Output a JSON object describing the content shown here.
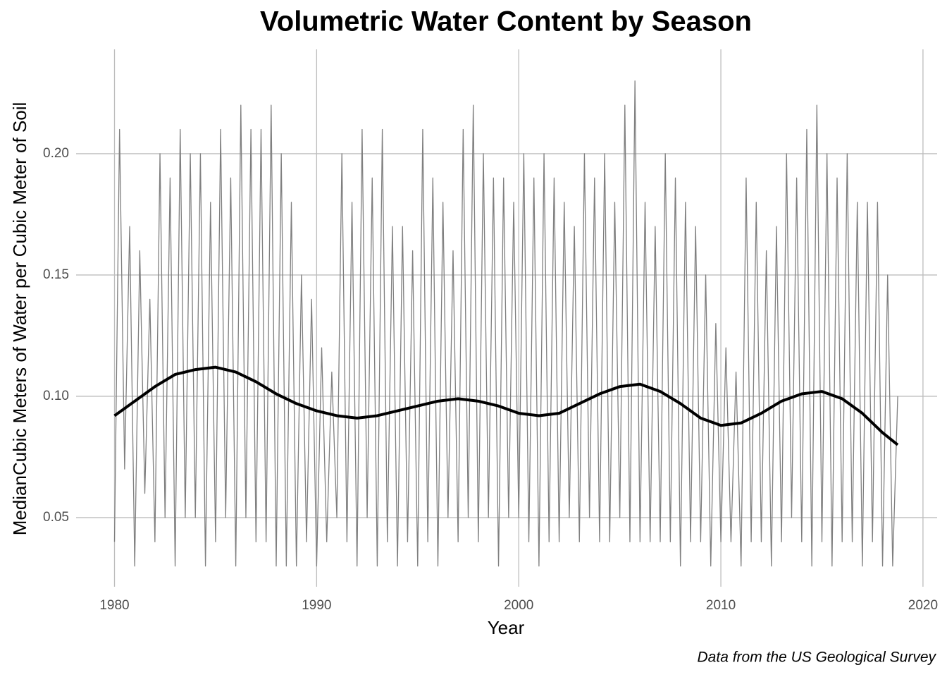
{
  "chart_data": {
    "type": "line",
    "title": "Volumetric Water Content by Season",
    "x_label": "Year",
    "y_label": "MedianCubic Meters of Water per Cubic Meter of Soil",
    "caption": "Data from the US Geological Survey",
    "xlim": [
      1978.1,
      2020.7
    ],
    "ylim": [
      0.0215,
      0.243
    ],
    "xticks": [
      1980,
      1990,
      2000,
      2010,
      2020
    ],
    "yticks": [
      {
        "value": 0.05,
        "label": "0.05"
      },
      {
        "value": 0.1,
        "label": "0.10"
      },
      {
        "value": 0.15,
        "label": "0.15"
      },
      {
        "value": 0.2,
        "label": "0.20"
      }
    ],
    "grid": true,
    "series": [
      {
        "color": "#7f7f7f",
        "width": 1.3,
        "x": [
          1980,
          1980.25,
          1980.5,
          1980.75,
          1981,
          1981.25,
          1981.5,
          1981.75,
          1982,
          1982.25,
          1982.5,
          1982.75,
          1983,
          1983.25,
          1983.5,
          1983.75,
          1984,
          1984.25,
          1984.5,
          1984.75,
          1985,
          1985.25,
          1985.5,
          1985.75,
          1986,
          1986.25,
          1986.5,
          1986.75,
          1987,
          1987.25,
          1987.5,
          1987.75,
          1988,
          1988.25,
          1988.5,
          1988.75,
          1989,
          1989.25,
          1989.5,
          1989.75,
          1990,
          1990.25,
          1990.5,
          1990.75,
          1991,
          1991.25,
          1991.5,
          1991.75,
          1992,
          1992.25,
          1992.5,
          1992.75,
          1993,
          1993.25,
          1993.5,
          1993.75,
          1994,
          1994.25,
          1994.5,
          1994.75,
          1995,
          1995.25,
          1995.5,
          1995.75,
          1996,
          1996.25,
          1996.5,
          1996.75,
          1997,
          1997.25,
          1997.5,
          1997.75,
          1998,
          1998.25,
          1998.5,
          1998.75,
          1999,
          1999.25,
          1999.5,
          1999.75,
          2000,
          2000.25,
          2000.5,
          2000.75,
          2001,
          2001.25,
          2001.5,
          2001.75,
          2002,
          2002.25,
          2002.5,
          2002.75,
          2003,
          2003.25,
          2003.5,
          2003.75,
          2004,
          2004.25,
          2004.5,
          2004.75,
          2005,
          2005.25,
          2005.5,
          2005.75,
          2006,
          2006.25,
          2006.5,
          2006.75,
          2007,
          2007.25,
          2007.5,
          2007.75,
          2008,
          2008.25,
          2008.5,
          2008.75,
          2009,
          2009.25,
          2009.5,
          2009.75,
          2010,
          2010.25,
          2010.5,
          2010.75,
          2011,
          2011.25,
          2011.5,
          2011.75,
          2012,
          2012.25,
          2012.5,
          2012.75,
          2013,
          2013.25,
          2013.5,
          2013.75,
          2014,
          2014.25,
          2014.5,
          2014.75,
          2015,
          2015.25,
          2015.5,
          2015.75,
          2016,
          2016.25,
          2016.5,
          2016.75,
          2017,
          2017.25,
          2017.5,
          2017.75,
          2018,
          2018.25,
          2018.5,
          2018.75
        ],
        "values": [
          0.04,
          0.21,
          0.07,
          0.17,
          0.03,
          0.16,
          0.06,
          0.14,
          0.04,
          0.2,
          0.05,
          0.19,
          0.03,
          0.21,
          0.05,
          0.2,
          0.05,
          0.2,
          0.03,
          0.18,
          0.04,
          0.21,
          0.05,
          0.19,
          0.03,
          0.22,
          0.05,
          0.21,
          0.04,
          0.21,
          0.04,
          0.22,
          0.03,
          0.2,
          0.03,
          0.18,
          0.03,
          0.15,
          0.04,
          0.14,
          0.03,
          0.12,
          0.04,
          0.11,
          0.05,
          0.2,
          0.04,
          0.18,
          0.03,
          0.21,
          0.05,
          0.19,
          0.03,
          0.21,
          0.04,
          0.17,
          0.03,
          0.17,
          0.04,
          0.16,
          0.03,
          0.21,
          0.04,
          0.19,
          0.03,
          0.18,
          0.05,
          0.16,
          0.04,
          0.21,
          0.05,
          0.22,
          0.04,
          0.2,
          0.05,
          0.19,
          0.03,
          0.19,
          0.05,
          0.18,
          0.05,
          0.2,
          0.04,
          0.19,
          0.03,
          0.2,
          0.04,
          0.19,
          0.04,
          0.18,
          0.05,
          0.17,
          0.04,
          0.2,
          0.05,
          0.19,
          0.04,
          0.2,
          0.04,
          0.18,
          0.05,
          0.22,
          0.04,
          0.23,
          0.04,
          0.18,
          0.04,
          0.17,
          0.04,
          0.2,
          0.04,
          0.19,
          0.03,
          0.18,
          0.04,
          0.17,
          0.04,
          0.15,
          0.03,
          0.13,
          0.04,
          0.12,
          0.04,
          0.11,
          0.03,
          0.19,
          0.04,
          0.18,
          0.04,
          0.16,
          0.03,
          0.17,
          0.04,
          0.2,
          0.05,
          0.19,
          0.04,
          0.21,
          0.03,
          0.22,
          0.04,
          0.2,
          0.03,
          0.19,
          0.04,
          0.2,
          0.04,
          0.18,
          0.03,
          0.18,
          0.04,
          0.18,
          0.03,
          0.15,
          0.03,
          0.1
        ]
      },
      {
        "color": "#000000",
        "width": 4,
        "x": [
          1980,
          1981,
          1982,
          1983,
          1984,
          1985,
          1986,
          1987,
          1988,
          1989,
          1990,
          1991,
          1992,
          1993,
          1994,
          1995,
          1996,
          1997,
          1998,
          1999,
          2000,
          2001,
          2002,
          2003,
          2004,
          2005,
          2006,
          2007,
          2008,
          2009,
          2010,
          2011,
          2012,
          2013,
          2014,
          2015,
          2016,
          2017,
          2018,
          2018.75
        ],
        "values": [
          0.092,
          0.098,
          0.104,
          0.109,
          0.111,
          0.112,
          0.11,
          0.106,
          0.101,
          0.097,
          0.094,
          0.092,
          0.091,
          0.092,
          0.094,
          0.096,
          0.098,
          0.099,
          0.098,
          0.096,
          0.093,
          0.092,
          0.093,
          0.097,
          0.101,
          0.104,
          0.105,
          0.102,
          0.097,
          0.091,
          0.088,
          0.089,
          0.093,
          0.098,
          0.101,
          0.102,
          0.099,
          0.093,
          0.085,
          0.08
        ]
      }
    ]
  }
}
